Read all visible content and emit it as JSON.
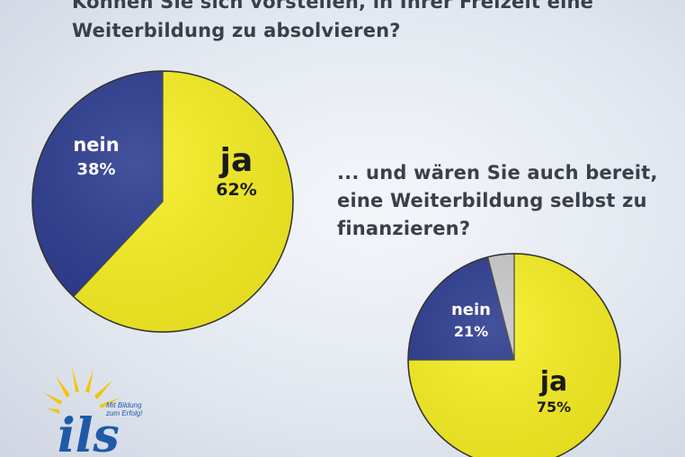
{
  "charts": {
    "chart1": {
      "question_lines": [
        "Können Sie sich vorstellen, in Ihrer Freizeit eine",
        "Weiterbildung zu absolvieren?"
      ]
    },
    "chart2": {
      "question_lines": [
        "... und wären Sie auch bereit,",
        "eine Weiterbildung selbst zu",
        "finanzieren?"
      ]
    }
  },
  "chart_data": [
    {
      "type": "pie",
      "title": "Können Sie sich vorstellen, in Ihrer Freizeit eine Weiterbildung zu absolvieren?",
      "slices": [
        {
          "label": "ja",
          "value": 62,
          "display": "62%",
          "color": "#f7ef22",
          "label_color": "#1a1a1a"
        },
        {
          "label": "nein",
          "value": 38,
          "display": "38%",
          "color": "#2b3b8f",
          "label_color": "#ffffff"
        }
      ]
    },
    {
      "type": "pie",
      "title": "... und wären Sie auch bereit, eine Weiterbildung selbst zu finanzieren?",
      "slices": [
        {
          "label": "ja",
          "value": 75,
          "display": "75%",
          "color": "#f7ef22",
          "label_color": "#1a1a1a"
        },
        {
          "label": "nein",
          "value": 21,
          "display": "21%",
          "color": "#2b3b8f",
          "label_color": "#ffffff"
        },
        {
          "label": "",
          "value": 4,
          "display": "",
          "color": "#c8c8c8",
          "label_color": "#1a1a1a"
        }
      ]
    }
  ],
  "logo": {
    "brand": "ils",
    "tagline_lines": [
      "Mit Bildung",
      "zum Erfolg!"
    ],
    "colors": {
      "sun": "#f5c400",
      "text": "#1e5aa8"
    }
  }
}
